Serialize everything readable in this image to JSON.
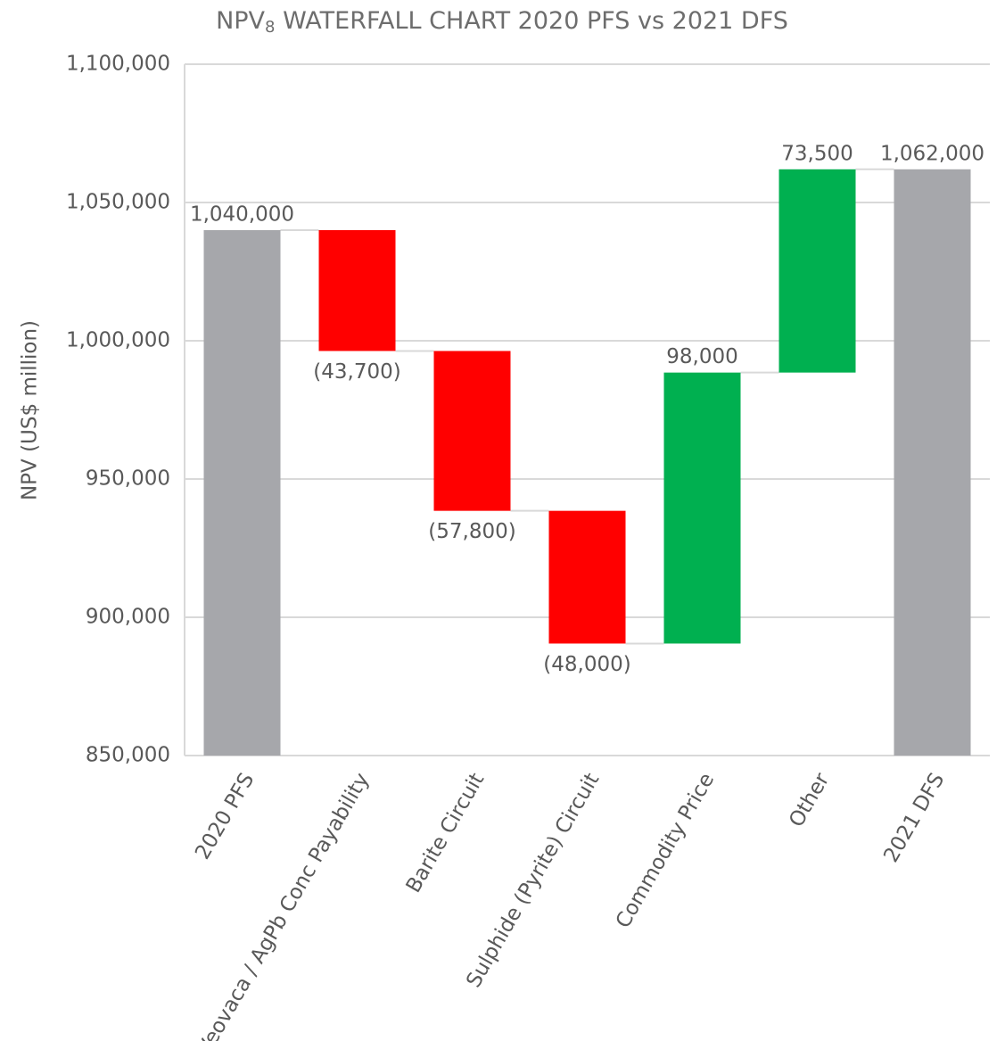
{
  "chart_data": {
    "type": "waterfall",
    "title": [
      "NPV",
      "8",
      " WATERFALL CHART 2020 PFS vs 2021 DFS"
    ],
    "y_label": "NPV (US$ million)",
    "categories": [
      "2020 PFS",
      "Veovaca / AgPb Conc Payability",
      "Barite Circuit",
      "Sulphide (Pyrite) Circuit",
      "Commodity Price",
      "Other",
      "2021 DFS"
    ],
    "values": [
      1040000,
      -43700,
      -57800,
      -48000,
      98000,
      73500,
      1062000
    ],
    "value_labels": [
      "1,040,000",
      "(43,700)",
      "(57,800)",
      "(48,000)",
      "98,000",
      "73,500",
      "1,062,000"
    ],
    "totals": [
      true,
      false,
      false,
      false,
      false,
      false,
      true
    ],
    "colors": {
      "total": "#a6a7ab",
      "increase": "#00b050",
      "decrease": "#ff0000"
    },
    "ylim": [
      850000,
      1100000
    ],
    "yticks": [
      {
        "value": 850000,
        "label": "850,000"
      },
      {
        "value": 900000,
        "label": "900,000"
      },
      {
        "value": 950000,
        "label": "950,000"
      },
      {
        "value": 1000000,
        "label": "1,000,000"
      },
      {
        "value": 1050000,
        "label": "1,050,000"
      },
      {
        "value": 1100000,
        "label": "1,100,000"
      }
    ],
    "grid": true
  }
}
